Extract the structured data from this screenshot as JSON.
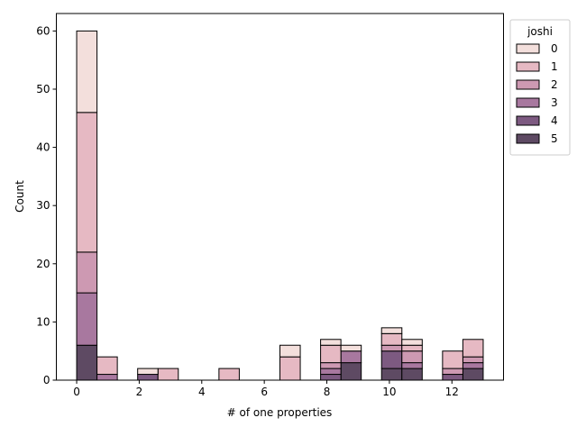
{
  "chart_data": {
    "type": "bar",
    "stacked": true,
    "title": "",
    "xlabel": "# of one properties",
    "ylabel": "Count",
    "xlim": [
      -0.65,
      13.65
    ],
    "ylim": [
      0,
      63
    ],
    "xticks": [
      0,
      2,
      4,
      6,
      8,
      10,
      12
    ],
    "yticks": [
      0,
      10,
      20,
      30,
      40,
      50,
      60
    ],
    "bin_width": 0.65,
    "legend": {
      "title": "joshi",
      "position": "upper right outside",
      "entries": [
        "0",
        "1",
        "2",
        "3",
        "4",
        "5"
      ]
    },
    "series": [
      {
        "name": "5",
        "color": "#5e4a63",
        "bins": [
          {
            "x": 0,
            "v": 6
          },
          {
            "x": 8.45,
            "v": 3
          },
          {
            "x": 9.75,
            "v": 2
          },
          {
            "x": 10.4,
            "v": 2
          },
          {
            "x": 12.35,
            "v": 2
          }
        ]
      },
      {
        "name": "4",
        "color": "#7d5a81",
        "bins": [
          {
            "x": 1.95,
            "v": 1
          },
          {
            "x": 7.8,
            "v": 1
          },
          {
            "x": 9.75,
            "v": 3
          },
          {
            "x": 11.7,
            "v": 1
          }
        ]
      },
      {
        "name": "3",
        "color": "#a8789f",
        "bins": [
          {
            "x": 0,
            "v": 9
          },
          {
            "x": 0.65,
            "v": 1
          },
          {
            "x": 7.8,
            "v": 1
          },
          {
            "x": 8.45,
            "v": 2
          },
          {
            "x": 10.4,
            "v": 1
          },
          {
            "x": 12.35,
            "v": 1
          }
        ]
      },
      {
        "name": "2",
        "color": "#cd99b2",
        "bins": [
          {
            "x": 0,
            "v": 7
          },
          {
            "x": 7.8,
            "v": 1
          },
          {
            "x": 9.75,
            "v": 1
          },
          {
            "x": 10.4,
            "v": 2
          },
          {
            "x": 11.7,
            "v": 1
          },
          {
            "x": 12.35,
            "v": 1
          }
        ]
      },
      {
        "name": "1",
        "color": "#e6b9c3",
        "bins": [
          {
            "x": 0,
            "v": 24
          },
          {
            "x": 0.65,
            "v": 3
          },
          {
            "x": 2.6,
            "v": 2
          },
          {
            "x": 4.55,
            "v": 2
          },
          {
            "x": 6.5,
            "v": 4
          },
          {
            "x": 7.8,
            "v": 3
          },
          {
            "x": 9.75,
            "v": 2
          },
          {
            "x": 10.4,
            "v": 1
          },
          {
            "x": 11.7,
            "v": 3
          },
          {
            "x": 12.35,
            "v": 3
          }
        ]
      },
      {
        "name": "0",
        "color": "#f3dfdc",
        "bins": [
          {
            "x": 0,
            "v": 14
          },
          {
            "x": 1.95,
            "v": 1
          },
          {
            "x": 6.5,
            "v": 2
          },
          {
            "x": 7.8,
            "v": 1
          },
          {
            "x": 8.45,
            "v": 1
          },
          {
            "x": 9.75,
            "v": 1
          },
          {
            "x": 10.4,
            "v": 1
          }
        ]
      }
    ]
  }
}
